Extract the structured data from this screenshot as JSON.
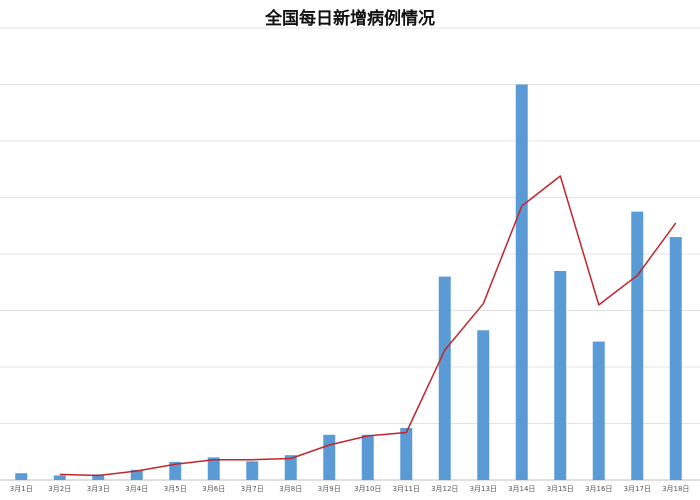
{
  "chart_data": {
    "type": "bar",
    "title": "全国每日新增病例情况",
    "xlabel": "",
    "ylabel": "",
    "ylim": [
      0,
      8
    ],
    "grid": true,
    "legend": "none",
    "categories": [
      "3月1日",
      "3月2日",
      "3月3日",
      "3月4日",
      "3月5日",
      "3月6日",
      "3月7日",
      "3月8日",
      "3月9日",
      "3月10日",
      "3月11日",
      "3月12日",
      "3月13日",
      "3月14日",
      "3月15日",
      "3月16日",
      "3月17日",
      "3月18日"
    ],
    "series": [
      {
        "type": "bar",
        "color": "#5B9BD5",
        "values": [
          0.12,
          0.08,
          0.1,
          0.18,
          0.32,
          0.4,
          0.33,
          0.44,
          0.8,
          0.8,
          0.92,
          3.6,
          2.65,
          7.0,
          3.7,
          2.45,
          4.75,
          4.3
        ]
      },
      {
        "type": "line",
        "color": "#C0272D",
        "values": [
          null,
          0.1,
          0.08,
          0.16,
          0.28,
          0.36,
          0.36,
          0.38,
          0.62,
          0.78,
          0.84,
          2.3,
          3.12,
          4.85,
          5.38,
          3.1,
          3.62,
          4.55
        ]
      }
    ]
  }
}
